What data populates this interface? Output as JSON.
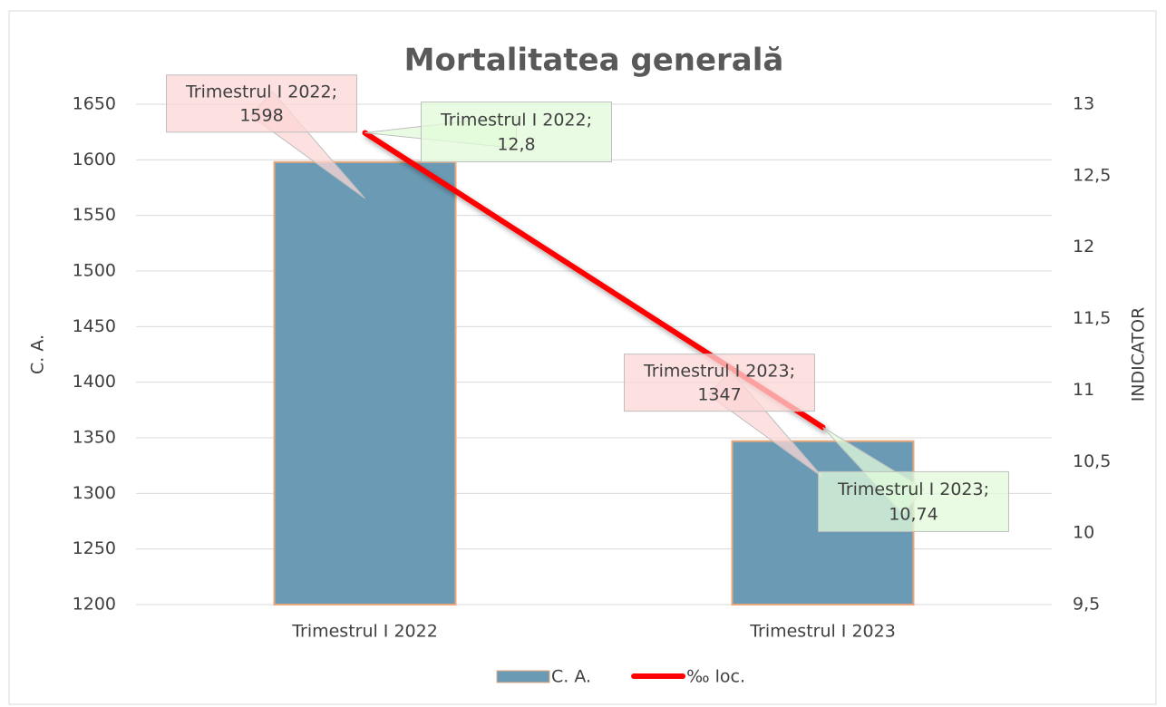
{
  "chart_data": {
    "type": "bar_line",
    "title": "Mortalitatea generală",
    "categories": [
      "Trimestrul I 2022",
      "Trimestrul I 2023"
    ],
    "series": [
      {
        "name": "C. A.",
        "type": "bar",
        "color": "#6b9bb4",
        "edge_color": "#e8a87c",
        "values": [
          1598,
          1347
        ]
      },
      {
        "name": "‰ loc.",
        "type": "line",
        "axis": "y2",
        "color": "#ff0000",
        "values": [
          12.8,
          10.74
        ],
        "value_labels": [
          "12,8",
          "10,74"
        ]
      }
    ],
    "label_separator": ";",
    "ylabel": "C. A.",
    "y2label": "INDICATOR",
    "ylim": [
      1200,
      1650
    ],
    "yticks": [
      1200,
      1250,
      1300,
      1350,
      1400,
      1450,
      1500,
      1550,
      1600,
      1650
    ],
    "y2lim": [
      9.5,
      13
    ],
    "y2ticks": [
      {
        "value": 9.5,
        "label": "9,5"
      },
      10,
      {
        "value": 10.5,
        "label": "10,5"
      },
      11,
      {
        "value": 11.5,
        "label": "11,5"
      },
      12,
      {
        "value": 12.5,
        "label": "12,5"
      },
      13
    ],
    "grid": true,
    "legend": "bottom"
  }
}
